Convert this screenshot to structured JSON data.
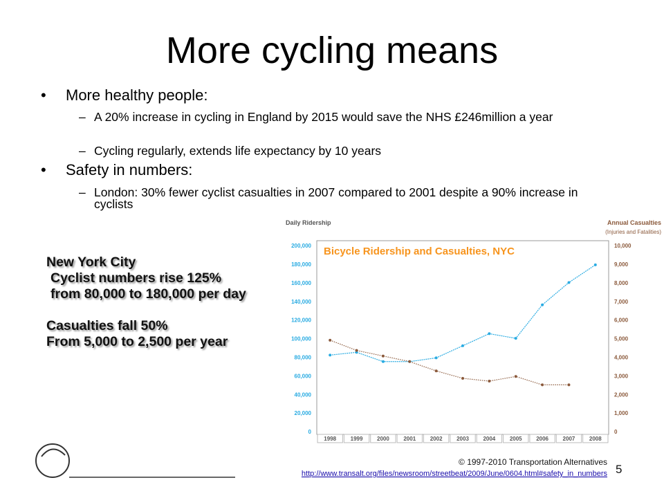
{
  "slide": {
    "title": "More cycling means",
    "bullets": [
      {
        "text": "More healthy people:",
        "sub": [
          "A 20% increase in cycling in England by 2015 would save the NHS £246million a year",
          "Cycling regularly, extends life expectancy by 10 years"
        ]
      },
      {
        "text": "Safety in numbers:",
        "sub": [
          "London: 30% fewer cyclist casualties in 2007 compared to 2001 despite a 90% increase in cyclists"
        ]
      }
    ],
    "callout": {
      "heading": "New York City",
      "lines": [
        "Cyclist numbers rise 125%",
        "from 80,000 to 180,000 per day"
      ],
      "lines2": [
        "Casualties fall 50%",
        "From 5,000 to 2,500 per year"
      ]
    },
    "footer": {
      "copyright": "© 1997-2010 Transportation Alternatives",
      "link": "http://www.transalt.org/files/newsroom/streetbeat/2009/June/0604.html#safety_in_numbers",
      "page": "5"
    }
  },
  "chart_data": {
    "type": "line",
    "title": "Bicycle Ridership and Casualties, NYC",
    "y_label": "Daily Ridership",
    "y2_label": "Annual Casualties",
    "y2_sublabel": "(Injuries and Fatalities)",
    "categories": [
      "1998",
      "1999",
      "2000",
      "2001",
      "2002",
      "2003",
      "2004",
      "2005",
      "2006",
      "2007",
      "2008"
    ],
    "series": [
      {
        "name": "Daily Ridership",
        "color": "#29abe2",
        "values": [
          83000,
          86000,
          76000,
          76000,
          80000,
          93000,
          106000,
          101000,
          137000,
          161000,
          180000
        ]
      },
      {
        "name": "Annual Casualties",
        "color": "#8b5a3c",
        "axis": "y2",
        "values": [
          4950,
          4400,
          4100,
          3800,
          3300,
          2900,
          2750,
          3000,
          2550,
          2550,
          null
        ]
      }
    ],
    "ylim": [
      0,
      200000
    ],
    "yticks": [
      0,
      {
        "value": 20000,
        "label": "20,000"
      },
      {
        "value": 40000,
        "label": "40,000"
      },
      {
        "value": 60000,
        "label": "60,000"
      },
      {
        "value": 80000,
        "label": "80,000"
      },
      {
        "value": 100000,
        "label": "100,000"
      },
      {
        "value": 120000,
        "label": "120,000"
      },
      {
        "value": 140000,
        "label": "140,000"
      },
      {
        "value": 160000,
        "label": "160,000"
      },
      {
        "value": 180000,
        "label": "180,000"
      },
      {
        "value": 200000,
        "label": "200,000"
      }
    ],
    "y2lim": [
      0,
      10000
    ],
    "y2ticks": [
      0,
      {
        "value": 1000,
        "label": "1,000"
      },
      {
        "value": 2000,
        "label": "2,000"
      },
      {
        "value": 3000,
        "label": "3,000"
      },
      {
        "value": 4000,
        "label": "4,000"
      },
      {
        "value": 5000,
        "label": "5,000"
      },
      {
        "value": 6000,
        "label": "6,000"
      },
      {
        "value": 7000,
        "label": "7,000"
      },
      {
        "value": 8000,
        "label": "8,000"
      },
      {
        "value": 9000,
        "label": "9,000"
      },
      {
        "value": 10000,
        "label": "10,000"
      }
    ]
  }
}
